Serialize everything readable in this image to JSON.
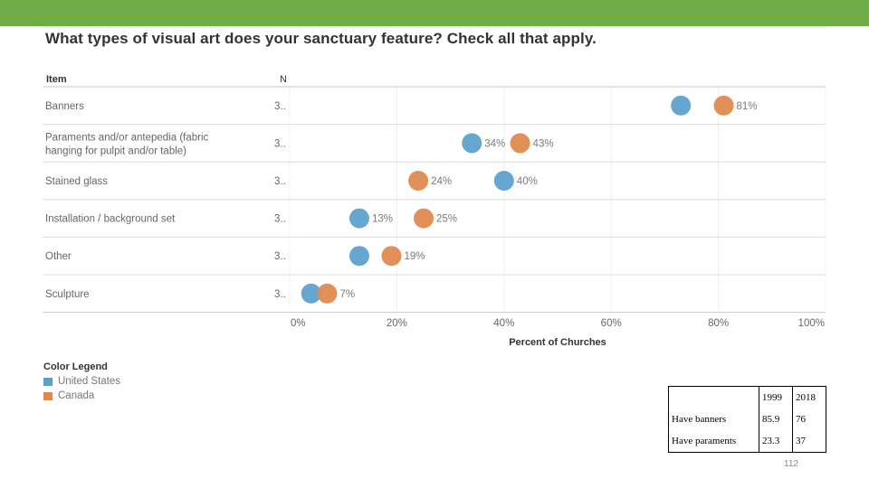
{
  "header": {
    "title": "What types of visual art does your sanctuary feature? Check all that apply."
  },
  "chart_data": {
    "type": "scatter",
    "title": "What types of visual art does your sanctuary feature? Check all that apply.",
    "column_headers": {
      "item": "Item",
      "n": "N"
    },
    "categories": [
      "Banners",
      "Paraments and/or antepedia (fabric hanging for pulpit and/or table)",
      "Stained glass",
      "Installation / background set",
      "Other",
      "Sculpture"
    ],
    "n_values": [
      "3..",
      "3..",
      "3..",
      "3..",
      "3..",
      "3.."
    ],
    "series": [
      {
        "name": "United States",
        "color": "#5b9fcb",
        "values": [
          73,
          34,
          40,
          13,
          13,
          4
        ],
        "labels": [
          "",
          "34%",
          "40%",
          "13%",
          "",
          ""
        ]
      },
      {
        "name": "Canada",
        "color": "#e0884e",
        "values": [
          81,
          43,
          24,
          25,
          19,
          7
        ],
        "labels": [
          "81%",
          "43%",
          "24%",
          "25%",
          "19%",
          "7%"
        ]
      }
    ],
    "x_ticks": [
      "0%",
      "20%",
      "40%",
      "60%",
      "80%",
      "100%"
    ],
    "xlim": [
      0,
      100
    ],
    "xlabel": "Percent of Churches",
    "ylabel": "",
    "legend_title": "Color Legend",
    "grid": true
  },
  "table": {
    "headers": [
      "",
      "1999",
      "2018"
    ],
    "rows": [
      {
        "label": "Have banners",
        "v1999": "85.9",
        "v2018": "76"
      },
      {
        "label": "Have paraments",
        "v1999": "23.3",
        "v2018": "37"
      }
    ]
  },
  "footer": {
    "page_number": "112"
  }
}
